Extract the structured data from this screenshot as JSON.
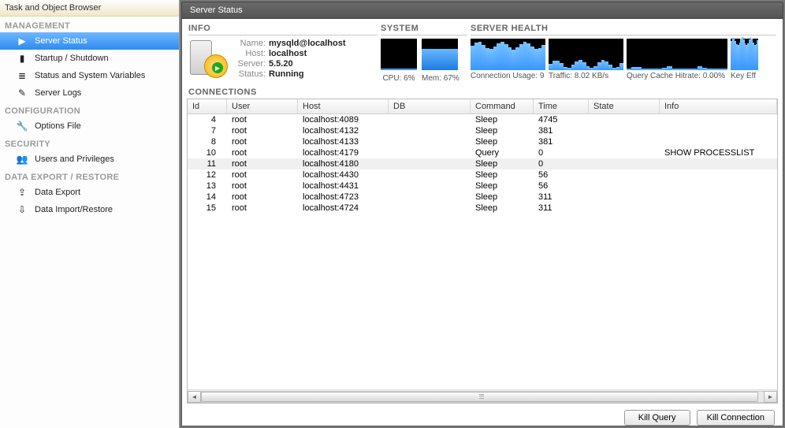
{
  "sidebar": {
    "title": "Task and Object Browser",
    "sections": [
      {
        "label": "MANAGEMENT",
        "items": [
          {
            "label": "Server Status",
            "icon": "▶",
            "selected": true
          },
          {
            "label": "Startup / Shutdown",
            "icon": "▮"
          },
          {
            "label": "Status and System Variables",
            "icon": "≣"
          },
          {
            "label": "Server Logs",
            "icon": "✎"
          }
        ]
      },
      {
        "label": "CONFIGURATION",
        "items": [
          {
            "label": "Options File",
            "icon": "🔧"
          }
        ]
      },
      {
        "label": "SECURITY",
        "items": [
          {
            "label": "Users and Privileges",
            "icon": "👥"
          }
        ]
      },
      {
        "label": "DATA EXPORT / RESTORE",
        "items": [
          {
            "label": "Data Export",
            "icon": "⇪"
          },
          {
            "label": "Data Import/Restore",
            "icon": "⇩"
          }
        ]
      }
    ]
  },
  "main": {
    "title": "Server Status",
    "info": {
      "heading": "INFO",
      "rows": {
        "name_k": "Name:",
        "name_v": "mysqld@localhost",
        "host_k": "Host:",
        "host_v": "localhost",
        "server_k": "Server:",
        "server_v": "5.5.20",
        "status_k": "Status:",
        "status_v": "Running"
      }
    },
    "system": {
      "heading": "SYSTEM",
      "cpu": {
        "label": "CPU: 6%",
        "pct": 6
      },
      "mem": {
        "label": "Mem: 67%",
        "pct": 67
      }
    },
    "health": {
      "heading": "SERVER HEALTH",
      "cards": [
        {
          "label": "Connection Usage: 9",
          "pct": 78
        },
        {
          "label": "Traffic: 8.02 KB/s",
          "pct": 20
        },
        {
          "label": "Query Cache Hitrate: 0.00%",
          "pct": 0
        },
        {
          "label": "Key Eff",
          "pct": 92
        }
      ]
    },
    "conn": {
      "heading": "CONNECTIONS",
      "columns": [
        "Id",
        "User",
        "Host",
        "DB",
        "Command",
        "Time",
        "State",
        "Info"
      ],
      "rows": [
        {
          "id": "4",
          "user": "root",
          "host": "localhost:4089",
          "db": "",
          "cmd": "Sleep",
          "time": "4745",
          "state": "",
          "info": ""
        },
        {
          "id": "7",
          "user": "root",
          "host": "localhost:4132",
          "db": "",
          "cmd": "Sleep",
          "time": "381",
          "state": "",
          "info": ""
        },
        {
          "id": "8",
          "user": "root",
          "host": "localhost:4133",
          "db": "",
          "cmd": "Sleep",
          "time": "381",
          "state": "",
          "info": ""
        },
        {
          "id": "10",
          "user": "root",
          "host": "localhost:4179",
          "db": "",
          "cmd": "Query",
          "time": "0",
          "state": "",
          "info": "SHOW PROCESSLIST"
        },
        {
          "id": "11",
          "user": "root",
          "host": "localhost:4180",
          "db": "",
          "cmd": "Sleep",
          "time": "0",
          "state": "",
          "info": "",
          "selected": true
        },
        {
          "id": "12",
          "user": "root",
          "host": "localhost:4430",
          "db": "",
          "cmd": "Sleep",
          "time": "56",
          "state": "",
          "info": ""
        },
        {
          "id": "13",
          "user": "root",
          "host": "localhost:4431",
          "db": "",
          "cmd": "Sleep",
          "time": "56",
          "state": "",
          "info": ""
        },
        {
          "id": "14",
          "user": "root",
          "host": "localhost:4723",
          "db": "",
          "cmd": "Sleep",
          "time": "311",
          "state": "",
          "info": ""
        },
        {
          "id": "15",
          "user": "root",
          "host": "localhost:4724",
          "db": "",
          "cmd": "Sleep",
          "time": "311",
          "state": "",
          "info": ""
        }
      ]
    },
    "buttons": {
      "kill_query": "Kill Query",
      "kill_connection": "Kill Connection"
    }
  },
  "colors": {
    "accent": "#2e8bef",
    "spark": "#3a96ff"
  }
}
